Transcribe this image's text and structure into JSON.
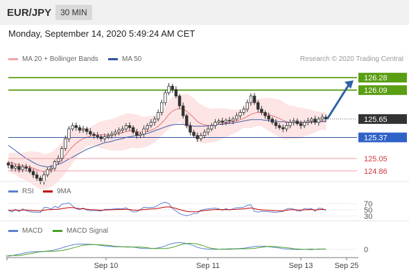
{
  "header": {
    "pair": "EUR/JPY",
    "timeframe": "30 MIN"
  },
  "datetime": "Monday, September 14, 2020 5:49:24 AM CET",
  "legend": {
    "ma_bb": "MA 20 + Bollinger Bands",
    "ma50": "MA 50",
    "credit": "Research © 2020 Trading Central"
  },
  "colors": {
    "resistance": "#5a9e13",
    "support": "#f3a9ad",
    "pivot": "#2f52a0",
    "price": "#333333",
    "arrow": "#2f62a3",
    "bb": "#fde0e0",
    "ma20": "#e57373",
    "ma50": "#3f5ca8",
    "rsi": "#5b7fd1",
    "ma9": "#c00000",
    "macd": "#5b7fd1",
    "signal": "#4aa025"
  },
  "chart_data": [
    {
      "type": "candlestick",
      "ylim": [
        124.7,
        126.45
      ],
      "levels": [
        {
          "value": 126.28,
          "label": "126.28",
          "kind": "resistance"
        },
        {
          "value": 126.09,
          "label": "126.09",
          "kind": "resistance"
        },
        {
          "value": 125.65,
          "label": "125.65",
          "kind": "current"
        },
        {
          "value": 125.37,
          "label": "125.37",
          "kind": "pivot"
        },
        {
          "value": 125.05,
          "label": "125.05",
          "kind": "support"
        },
        {
          "value": 124.86,
          "label": "124.86",
          "kind": "support"
        }
      ],
      "x_ticks": [
        "Sep 10",
        "Sep 11",
        "Sep 13",
        "Sep 25"
      ],
      "close": [
        124.95,
        124.9,
        124.93,
        124.88,
        124.92,
        124.9,
        124.85,
        124.8,
        124.75,
        124.7,
        124.8,
        124.88,
        124.9,
        125.0,
        125.05,
        125.2,
        125.35,
        125.5,
        125.55,
        125.52,
        125.48,
        125.5,
        125.46,
        125.42,
        125.4,
        125.38,
        125.35,
        125.38,
        125.4,
        125.42,
        125.45,
        125.48,
        125.5,
        125.55,
        125.52,
        125.45,
        125.4,
        125.42,
        125.5,
        125.55,
        125.6,
        125.65,
        125.75,
        125.9,
        126.05,
        126.15,
        126.1,
        126.0,
        125.85,
        125.7,
        125.55,
        125.45,
        125.4,
        125.35,
        125.4,
        125.45,
        125.5,
        125.55,
        125.6,
        125.62,
        125.6,
        125.63,
        125.62,
        125.65,
        125.7,
        125.75,
        125.8,
        125.9,
        126.0,
        125.9,
        125.8,
        125.75,
        125.7,
        125.65,
        125.6,
        125.55,
        125.52,
        125.5,
        125.55,
        125.6,
        125.62,
        125.58,
        125.55,
        125.6,
        125.62,
        125.65,
        125.6,
        125.65,
        125.68,
        125.65
      ],
      "ma20": [
        125.0,
        124.98,
        124.97,
        124.95,
        124.94,
        124.93,
        124.92,
        124.9,
        124.88,
        124.86,
        124.85,
        124.86,
        124.88,
        124.92,
        124.97,
        125.03,
        125.1,
        125.17,
        125.23,
        125.28,
        125.32,
        125.35,
        125.37,
        125.39,
        125.4,
        125.41,
        125.41,
        125.41,
        125.41,
        125.41,
        125.42,
        125.43,
        125.44,
        125.46,
        125.47,
        125.47,
        125.46,
        125.45,
        125.45,
        125.46,
        125.48,
        125.5,
        125.54,
        125.59,
        125.65,
        125.72,
        125.77,
        125.8,
        125.81,
        125.8,
        125.77,
        125.72,
        125.67,
        125.61,
        125.58,
        125.56,
        125.55,
        125.55,
        125.56,
        125.57,
        125.58,
        125.59,
        125.6,
        125.61,
        125.62,
        125.64,
        125.66,
        125.69,
        125.72,
        125.74,
        125.75,
        125.75,
        125.74,
        125.72,
        125.7,
        125.68,
        125.66,
        125.63,
        125.61,
        125.6,
        125.6,
        125.59,
        125.59,
        125.6,
        125.6,
        125.61,
        125.61,
        125.62,
        125.62,
        125.62
      ],
      "ma50": [
        125.25,
        125.21,
        125.17,
        125.13,
        125.09,
        125.05,
        125.02,
        124.99,
        124.96,
        124.94,
        124.93,
        124.92,
        124.93,
        124.94,
        124.96,
        124.98,
        125.01,
        125.04,
        125.07,
        125.1,
        125.13,
        125.16,
        125.19,
        125.21,
        125.23,
        125.25,
        125.27,
        125.29,
        125.3,
        125.31,
        125.33,
        125.34,
        125.35,
        125.37,
        125.38,
        125.39,
        125.4,
        125.41,
        125.42,
        125.43,
        125.45,
        125.47,
        125.49,
        125.51,
        125.53,
        125.55,
        125.56,
        125.57,
        125.57,
        125.57,
        125.56,
        125.55,
        125.54,
        125.54,
        125.54,
        125.54,
        125.55,
        125.55,
        125.56,
        125.57,
        125.57,
        125.58,
        125.58,
        125.59,
        125.6,
        125.61,
        125.62,
        125.63,
        125.64,
        125.64,
        125.64,
        125.64,
        125.63,
        125.63,
        125.62,
        125.62,
        125.61,
        125.61,
        125.6,
        125.6,
        125.6,
        125.6,
        125.6,
        125.6,
        125.6,
        125.6,
        125.61,
        125.61,
        125.61,
        125.61
      ]
    },
    {
      "type": "line",
      "series": [
        {
          "name": "RSI"
        },
        {
          "name": "9MA"
        }
      ],
      "y_ticks": [
        "70",
        "50",
        "30"
      ]
    },
    {
      "type": "line",
      "series": [
        {
          "name": "MACD"
        },
        {
          "name": "MACD Signal"
        }
      ],
      "y_ticks": [
        "0"
      ]
    }
  ]
}
